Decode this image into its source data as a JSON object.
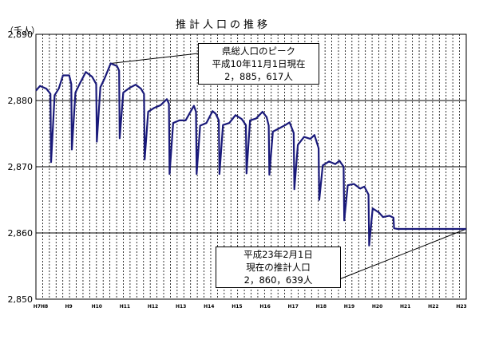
{
  "chart_data": {
    "type": "line",
    "title": "推計人口の推移",
    "unit_label": "（千人）",
    "ylim": [
      2850,
      2890
    ],
    "y_ticks": [
      2850,
      2860,
      2870,
      2880,
      2890
    ],
    "y_tick_labels": [
      "2,850",
      "2,860",
      "2,870",
      "2,880",
      "2,890"
    ],
    "x_tick_labels": [
      "H7H8",
      "H9",
      "H10",
      "H11",
      "H12",
      "H13",
      "H14",
      "H15",
      "H16",
      "H17",
      "H18",
      "H19",
      "H20",
      "H21",
      "H22",
      "H23"
    ],
    "grid": true,
    "line_color": "#1a1a7a",
    "x": [
      0,
      2,
      5,
      7,
      7.3,
      9,
      11,
      13,
      16,
      17,
      17.3,
      19,
      21,
      24,
      27,
      29,
      29.3,
      31,
      33,
      36,
      39,
      40,
      40.3,
      42,
      45,
      48,
      50.5,
      52,
      52.3,
      54,
      57,
      60,
      63,
      64,
      64.3,
      66,
      69,
      72,
      76,
      77,
      77.3,
      79,
      82,
      85,
      86.5,
      88,
      88.3,
      90,
      93,
      96,
      99,
      101,
      101.3,
      103,
      106,
      109,
      111,
      112,
      112.3,
      114,
      117,
      120,
      122,
      124,
      124.3,
      126,
      129,
      132,
      134,
      136,
      136.3,
      138,
      141,
      144,
      146,
      148,
      148.3,
      150,
      153,
      156,
      158,
      160,
      160.3,
      162,
      165,
      167,
      170,
      172,
      172.3,
      174,
      177,
      179,
      181,
      184,
      184.3,
      186,
      189,
      192,
      194,
      196,
      196.3,
      198,
      201,
      203,
      205,
      207
    ],
    "values": [
      2881.5,
      2882.2,
      2881.8,
      2881.0,
      2870.7,
      2880.8,
      2881.8,
      2883.8,
      2883.8,
      2882.5,
      2872.6,
      2881.2,
      2882.5,
      2884.3,
      2883.6,
      2882.5,
      2873.8,
      2882.0,
      2883.3,
      2885.6,
      2885.2,
      2884.5,
      2874.3,
      2881.2,
      2881.9,
      2882.4,
      2881.8,
      2881.0,
      2871.1,
      2878.3,
      2878.9,
      2879.3,
      2880.2,
      2879.5,
      2868.9,
      2876.6,
      2877.0,
      2877.0,
      2879.2,
      2878.3,
      2868.9,
      2876.2,
      2876.6,
      2878.4,
      2878.0,
      2877.0,
      2868.9,
      2876.3,
      2876.6,
      2877.8,
      2877.2,
      2876.3,
      2869.0,
      2877.0,
      2877.3,
      2878.3,
      2877.5,
      2876.2,
      2868.8,
      2875.3,
      2875.8,
      2876.3,
      2876.7,
      2875.1,
      2866.6,
      2873.3,
      2874.5,
      2874.2,
      2874.8,
      2872.8,
      2865.0,
      2870.2,
      2870.8,
      2870.4,
      2870.9,
      2870.0,
      2861.9,
      2867.2,
      2867.4,
      2866.7,
      2867.0,
      2865.8,
      2858.1,
      2863.7,
      2863.1,
      2862.4,
      2862.6,
      2862.3,
      2860.7,
      2860.6,
      2860.6,
      2860.6,
      2860.6,
      2860.6,
      2860.6,
      2860.6,
      2860.6,
      2860.6,
      2860.6,
      2860.6,
      2860.6,
      2860.6,
      2860.6,
      2860.6,
      2860.6,
      2860.6
    ],
    "peak_note": [
      "県総人口のピーク",
      "平成10年11月1日現在",
      "2，885，617人"
    ],
    "latest_note": [
      "平成23年2月1日",
      "現在の推計人口",
      "2，860，639人"
    ]
  }
}
